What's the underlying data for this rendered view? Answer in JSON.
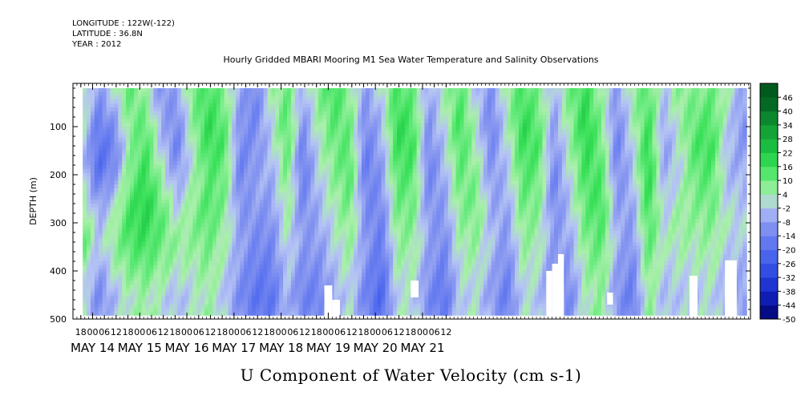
{
  "header": {
    "longitude": "LONGITUDE : 122W(-122)",
    "latitude": "LATITUDE : 36.8N",
    "year": "YEAR : 2012"
  },
  "chart_data": {
    "type": "heatmap",
    "title": "Hourly Gridded MBARI Mooring M1 Sea Water Temperature and Salinity Observations",
    "xlabel": "U Component of Water Velocity (cm s-1)",
    "ylabel": "DEPTH (m)",
    "x_unit": "hours since MAY 14 00",
    "xlim": [
      -10,
      335
    ],
    "data_x_range": [
      -5,
      333
    ],
    "ylim": [
      500,
      10
    ],
    "data_y_range": [
      20,
      485
    ],
    "y_ticks": [
      100,
      200,
      300,
      400,
      500
    ],
    "y_tick_labels": [
      "100",
      "200",
      "300",
      "400",
      "500"
    ],
    "x_hour_ticks": [
      "18",
      "00",
      "06",
      "12",
      "18",
      "00",
      "06",
      "12",
      "18",
      "00",
      "06",
      "12",
      "18",
      "00",
      "06",
      "12",
      "18",
      "00",
      "06",
      "12",
      "18",
      "00",
      "06",
      "12",
      "18",
      "00",
      "06",
      "12",
      "18",
      "00",
      "06",
      "12"
    ],
    "x_day_labels": [
      "MAY 14",
      "MAY 15",
      "MAY 16",
      "MAY 17",
      "MAY 18",
      "MAY 19",
      "MAY 20",
      "MAY 21"
    ],
    "colorbar": {
      "levels": [
        -50,
        -44,
        -38,
        -32,
        -26,
        -20,
        -14,
        -8,
        -2,
        4,
        10,
        16,
        22,
        28,
        34,
        40,
        46
      ],
      "labels": [
        "-50",
        "-44",
        "-38",
        "-32",
        "-26",
        "-20",
        "-14",
        "-8",
        "-2",
        "4",
        "10",
        "16",
        "22",
        "28",
        "34",
        "40",
        "46"
      ]
    },
    "colors": {
      "strong_negative": "#000080",
      "negative": "#8a9af0",
      "weak_negative": "#b0c0f0",
      "weak_positive": "#a8f0a8",
      "positive": "#40e060",
      "strong_positive": "#006020",
      "no_data": "#ffffff"
    },
    "field_grid": {
      "x_start": -5,
      "x_step": 8,
      "y_depths": [
        20,
        60,
        100,
        140,
        180,
        220,
        260,
        300,
        340,
        380,
        420,
        460,
        485
      ],
      "values": [
        [
          6,
          -8,
          2,
          12,
          4,
          -10,
          -6,
          10,
          14,
          8,
          -6,
          -12,
          4,
          10,
          -4,
          8,
          16,
          6,
          -8,
          2,
          14,
          10,
          -6,
          4,
          12,
          -2,
          -10,
          6,
          14,
          8,
          -4,
          10,
          16,
          4,
          -8,
          6,
          12,
          -2,
          8,
          6,
          10,
          4,
          -6
        ],
        [
          4,
          -12,
          -4,
          10,
          8,
          -8,
          -10,
          8,
          16,
          10,
          -8,
          -14,
          2,
          12,
          -8,
          6,
          14,
          8,
          -10,
          -2,
          16,
          12,
          -8,
          2,
          14,
          0,
          -12,
          4,
          16,
          10,
          -6,
          8,
          18,
          6,
          -10,
          4,
          14,
          -4,
          6,
          10,
          12,
          2,
          -8
        ],
        [
          2,
          -16,
          -10,
          8,
          12,
          -4,
          -12,
          6,
          18,
          12,
          -10,
          -12,
          0,
          14,
          -10,
          4,
          12,
          10,
          -12,
          -4,
          18,
          14,
          -10,
          0,
          16,
          2,
          -14,
          2,
          18,
          12,
          -8,
          6,
          20,
          8,
          -12,
          2,
          16,
          -6,
          4,
          12,
          14,
          0,
          -10
        ],
        [
          0,
          -18,
          -14,
          6,
          14,
          -2,
          -14,
          4,
          16,
          14,
          -12,
          -10,
          -2,
          12,
          -14,
          2,
          10,
          12,
          -14,
          -6,
          16,
          16,
          -12,
          -2,
          14,
          4,
          -12,
          0,
          16,
          14,
          -10,
          4,
          18,
          10,
          -14,
          0,
          18,
          -8,
          2,
          14,
          16,
          -2,
          -8
        ],
        [
          -2,
          -20,
          -12,
          8,
          16,
          2,
          -10,
          2,
          14,
          12,
          -14,
          -8,
          -4,
          10,
          -16,
          0,
          8,
          14,
          -16,
          -8,
          14,
          14,
          -14,
          -4,
          12,
          6,
          -10,
          -2,
          14,
          12,
          -12,
          2,
          16,
          12,
          -12,
          -2,
          20,
          -6,
          0,
          12,
          14,
          -4,
          -6
        ],
        [
          2,
          -14,
          -6,
          10,
          18,
          6,
          -6,
          4,
          12,
          10,
          -12,
          -6,
          -6,
          8,
          -14,
          -2,
          6,
          12,
          -14,
          -10,
          12,
          12,
          -12,
          -6,
          10,
          8,
          -8,
          -4,
          12,
          10,
          -14,
          0,
          14,
          14,
          -10,
          -4,
          18,
          -4,
          2,
          10,
          12,
          -2,
          -4
        ],
        [
          6,
          -8,
          0,
          14,
          20,
          10,
          -2,
          6,
          14,
          8,
          -10,
          -8,
          -8,
          6,
          -12,
          -4,
          4,
          10,
          -12,
          -12,
          10,
          10,
          -10,
          -8,
          8,
          10,
          -6,
          -6,
          10,
          8,
          -12,
          -2,
          12,
          16,
          -8,
          -6,
          16,
          -2,
          4,
          8,
          10,
          0,
          -2
        ],
        [
          10,
          -4,
          4,
          16,
          18,
          12,
          2,
          8,
          12,
          6,
          -8,
          -10,
          -10,
          4,
          -10,
          -6,
          2,
          8,
          -10,
          -14,
          8,
          8,
          -8,
          -10,
          6,
          8,
          -4,
          -8,
          8,
          6,
          -10,
          -4,
          10,
          14,
          -6,
          -8,
          14,
          0,
          6,
          6,
          8,
          2,
          0
        ],
        [
          12,
          -2,
          6,
          14,
          16,
          10,
          6,
          6,
          10,
          4,
          -6,
          -12,
          -12,
          2,
          -8,
          -8,
          0,
          6,
          -8,
          -16,
          6,
          6,
          -6,
          -12,
          4,
          6,
          -2,
          -10,
          6,
          4,
          -8,
          -6,
          8,
          12,
          -4,
          -10,
          12,
          2,
          4,
          4,
          6,
          0,
          -2
        ],
        [
          8,
          -6,
          4,
          10,
          12,
          8,
          4,
          4,
          8,
          2,
          -8,
          -14,
          -14,
          0,
          -10,
          -10,
          -2,
          4,
          -10,
          -18,
          4,
          4,
          -8,
          -14,
          2,
          4,
          -4,
          -12,
          4,
          2,
          -10,
          -8,
          6,
          10,
          -6,
          -12,
          10,
          0,
          2,
          2,
          4,
          -2,
          -4
        ],
        [
          4,
          -10,
          0,
          6,
          8,
          4,
          0,
          2,
          6,
          0,
          -10,
          -16,
          -16,
          -2,
          -12,
          -12,
          -4,
          2,
          -12,
          -20,
          2,
          2,
          -10,
          -16,
          0,
          2,
          -6,
          -14,
          2,
          0,
          -12,
          -10,
          4,
          8,
          -8,
          -14,
          8,
          -2,
          0,
          0,
          2,
          -4,
          -6
        ],
        [
          0,
          -12,
          -4,
          2,
          4,
          0,
          -4,
          0,
          4,
          -2,
          -12,
          -18,
          -18,
          -4,
          -14,
          -14,
          -6,
          0,
          -14,
          -22,
          0,
          0,
          -12,
          -18,
          -2,
          0,
          -8,
          -16,
          0,
          -2,
          -14,
          -12,
          2,
          6,
          -10,
          -16,
          6,
          -4,
          -2,
          -2,
          0,
          -6,
          -8
        ],
        [
          2,
          -10,
          -2,
          4,
          6,
          2,
          -2,
          2,
          6,
          0,
          -10,
          -16,
          -16,
          -2,
          -12,
          -12,
          -4,
          2,
          -12,
          -20,
          2,
          2,
          -10,
          -16,
          0,
          2,
          -6,
          -14,
          2,
          0,
          -12,
          -10,
          4,
          8,
          -8,
          -14,
          8,
          -2,
          0,
          0,
          2,
          -4,
          -6
        ]
      ]
    },
    "no_data_regions": [
      {
        "x0": 118,
        "x1": 122,
        "y0": 430,
        "y1": 500
      },
      {
        "x0": 122,
        "x1": 126,
        "y0": 460,
        "y1": 500
      },
      {
        "x0": 162,
        "x1": 166,
        "y0": 420,
        "y1": 455
      },
      {
        "x0": 231,
        "x1": 234,
        "y0": 400,
        "y1": 500
      },
      {
        "x0": 234,
        "x1": 237,
        "y0": 385,
        "y1": 500
      },
      {
        "x0": 237,
        "x1": 240,
        "y0": 365,
        "y1": 500
      },
      {
        "x0": 262,
        "x1": 265,
        "y0": 445,
        "y1": 470
      },
      {
        "x0": 304,
        "x1": 308,
        "y0": 410,
        "y1": 500
      },
      {
        "x0": 322,
        "x1": 328,
        "y0": 378,
        "y1": 500
      }
    ]
  }
}
